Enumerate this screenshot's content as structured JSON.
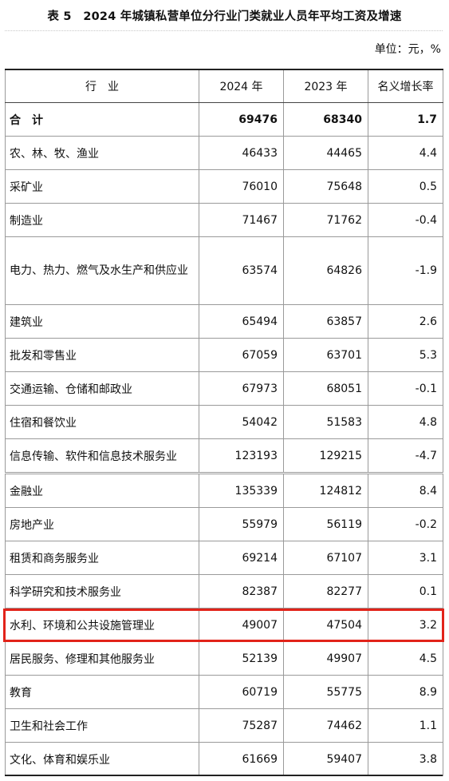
{
  "title": "表 5　2024 年城镇私营单位分行业门类就业人员年平均工资及增速",
  "unit": "单位：元，%",
  "headers": [
    "行　业",
    "2024 年",
    "2023 年",
    "名义增长率"
  ],
  "rows": [
    {
      "name": "合　计",
      "y2024": "69476",
      "y2023": "68340",
      "growth": "1.7"
    },
    {
      "name": "农、林、牧、渔业",
      "y2024": "46433",
      "y2023": "44465",
      "growth": "4.4"
    },
    {
      "name": "采矿业",
      "y2024": "76010",
      "y2023": "75648",
      "growth": "0.5"
    },
    {
      "name": "制造业",
      "y2024": "71467",
      "y2023": "71762",
      "growth": "-0.4"
    },
    {
      "name": "电力、热力、燃气及水生产和供应业",
      "y2024": "63574",
      "y2023": "64826",
      "growth": "-1.9"
    },
    {
      "name": "建筑业",
      "y2024": "65494",
      "y2023": "63857",
      "growth": "2.6"
    },
    {
      "name": "批发和零售业",
      "y2024": "67059",
      "y2023": "63701",
      "growth": "5.3"
    },
    {
      "name": "交通运输、仓储和邮政业",
      "y2024": "67973",
      "y2023": "68051",
      "growth": "-0.1"
    },
    {
      "name": "住宿和餐饮业",
      "y2024": "54042",
      "y2023": "51583",
      "growth": "4.8"
    },
    {
      "name": "信息传输、软件和信息技术服务业",
      "y2024": "123193",
      "y2023": "129215",
      "growth": "-4.7"
    },
    {
      "name": "金融业",
      "y2024": "135339",
      "y2023": "124812",
      "growth": "8.4"
    },
    {
      "name": "房地产业",
      "y2024": "55979",
      "y2023": "56119",
      "growth": "-0.2"
    },
    {
      "name": "租赁和商务服务业",
      "y2024": "69214",
      "y2023": "67107",
      "growth": "3.1"
    },
    {
      "name": "科学研究和技术服务业",
      "y2024": "82387",
      "y2023": "82277",
      "growth": "0.1"
    },
    {
      "name": "水利、环境和公共设施管理业",
      "y2024": "49007",
      "y2023": "47504",
      "growth": "3.2"
    },
    {
      "name": "居民服务、修理和其他服务业",
      "y2024": "52139",
      "y2023": "49907",
      "growth": "4.5"
    },
    {
      "name": "教育",
      "y2024": "60719",
      "y2023": "55775",
      "growth": "8.9"
    },
    {
      "name": "卫生和社会工作",
      "y2024": "75287",
      "y2023": "74462",
      "growth": "1.1"
    },
    {
      "name": "文化、体育和娱乐业",
      "y2024": "61669",
      "y2023": "59407",
      "growth": "3.8"
    }
  ],
  "highlight_color": "#e2231a"
}
